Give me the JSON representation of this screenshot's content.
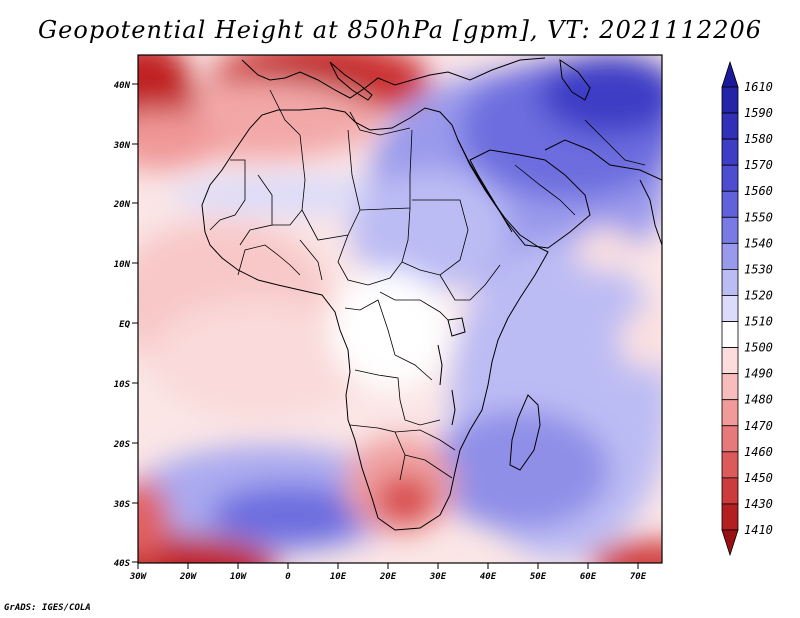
{
  "title": "Geopotential Height at 850hPa [gpm], VT: 2021112206",
  "credit": "GrADS: IGES/COLA",
  "lat_labels": [
    "40N",
    "30N",
    "20N",
    "10N",
    "EQ",
    "10S",
    "20S",
    "30S",
    "40S"
  ],
  "lon_labels": [
    "30W",
    "20W",
    "10W",
    "0",
    "10E",
    "20E",
    "30E",
    "40E",
    "50E",
    "60E",
    "70E"
  ],
  "colorbar": {
    "levels": [
      "1610",
      "1590",
      "1580",
      "1570",
      "1560",
      "1550",
      "1540",
      "1530",
      "1520",
      "1510",
      "1500",
      "1490",
      "1480",
      "1470",
      "1460",
      "1450",
      "1430",
      "1410"
    ],
    "colors": [
      "#1a1a9a",
      "#2424a8",
      "#3030b8",
      "#3d3dc6",
      "#4d4dd2",
      "#6161dc",
      "#7a7ae4",
      "#9a9aec",
      "#bcbcf4",
      "#dcdcfa",
      "#ffffff",
      "#fcdcdc",
      "#f8bcbc",
      "#f09a9a",
      "#e67a7a",
      "#dc5a5a",
      "#cc3c3c",
      "#b42020",
      "#9a1010"
    ]
  },
  "chart_data": {
    "type": "heatmap",
    "title": "Geopotential Height at 850hPa [gpm], VT: 2021112206",
    "variable": "850hPa geopotential height",
    "units": "gpm",
    "valid_time": "2021112206",
    "lon_range": [
      "30W",
      "75E"
    ],
    "lat_range": [
      "40S",
      "45N"
    ],
    "contour_levels": [
      1410,
      1430,
      1450,
      1460,
      1470,
      1480,
      1490,
      1500,
      1510,
      1520,
      1530,
      1540,
      1550,
      1560,
      1570,
      1580,
      1590,
      1610
    ]
  }
}
